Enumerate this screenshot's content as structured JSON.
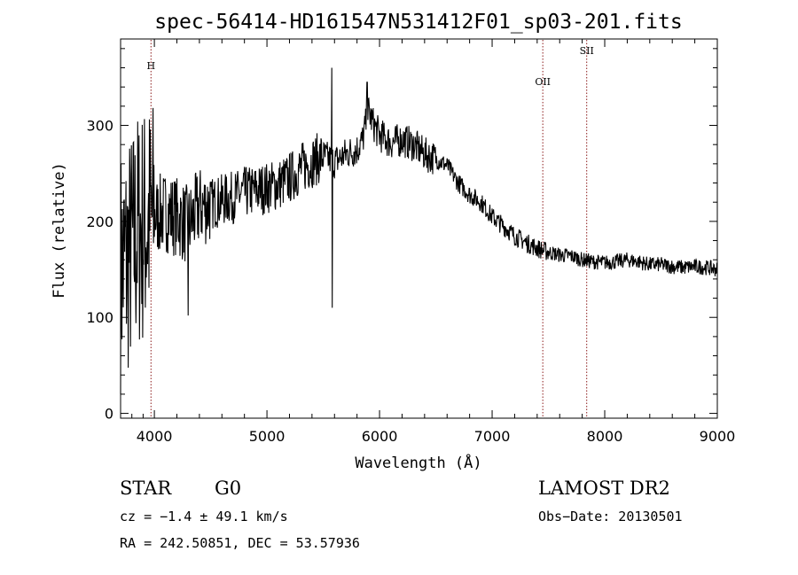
{
  "chart_data": {
    "type": "line",
    "title": "spec-56414-HD161547N531412F01_sp03-201.fits",
    "xlabel": "Wavelength (Å)",
    "ylabel": "Flux (relative)",
    "xlim": [
      3700,
      9000
    ],
    "ylim": [
      -5,
      390
    ],
    "x_ticks": [
      4000,
      5000,
      6000,
      7000,
      8000,
      9000
    ],
    "y_ticks": [
      0,
      100,
      200,
      300
    ],
    "grid": false,
    "line_color": "#000000",
    "marker_color": "#8b1a1a",
    "series": [
      {
        "x": [
          3700,
          3750,
          3800,
          3850,
          3900,
          3950,
          4000,
          4100,
          4200,
          4300,
          4400,
          4500,
          4600,
          4700,
          4800,
          4900,
          5000,
          5100,
          5200,
          5300,
          5400,
          5500,
          5600,
          5700,
          5800,
          5850,
          5900,
          5950,
          6000,
          6100,
          6200,
          6300,
          6400,
          6500,
          6600,
          6700,
          6800,
          6900,
          7000,
          7100,
          7200,
          7300,
          7400,
          7500,
          7600,
          7700,
          7800,
          7900,
          8000,
          8100,
          8200,
          8300,
          8400,
          8500,
          8600,
          8700,
          8800,
          8900,
          9000
        ],
        "values": [
          150,
          160,
          170,
          190,
          195,
          200,
          205,
          210,
          205,
          195,
          215,
          218,
          222,
          225,
          230,
          232,
          235,
          238,
          245,
          255,
          262,
          268,
          262,
          270,
          275,
          285,
          315,
          300,
          290,
          282,
          285,
          280,
          270,
          265,
          258,
          240,
          228,
          220,
          205,
          195,
          185,
          178,
          172,
          168,
          165,
          164,
          160,
          158,
          157,
          158,
          160,
          158,
          155,
          155,
          153,
          152,
          153,
          152,
          150
        ]
      }
    ],
    "lines": [
      {
        "label": "H",
        "x": 3970
      },
      {
        "label": "OII",
        "x": 7450
      },
      {
        "label": "SII",
        "x": 7840
      }
    ]
  },
  "info": {
    "object_class": "STAR",
    "subclass": "G0",
    "cz": "cz = −1.4 ± 49.1 km/s",
    "coords": "RA = 242.50851, DEC =  53.57936",
    "survey": "LAMOST DR2",
    "obs_date": "Obs−Date: 20130501"
  }
}
